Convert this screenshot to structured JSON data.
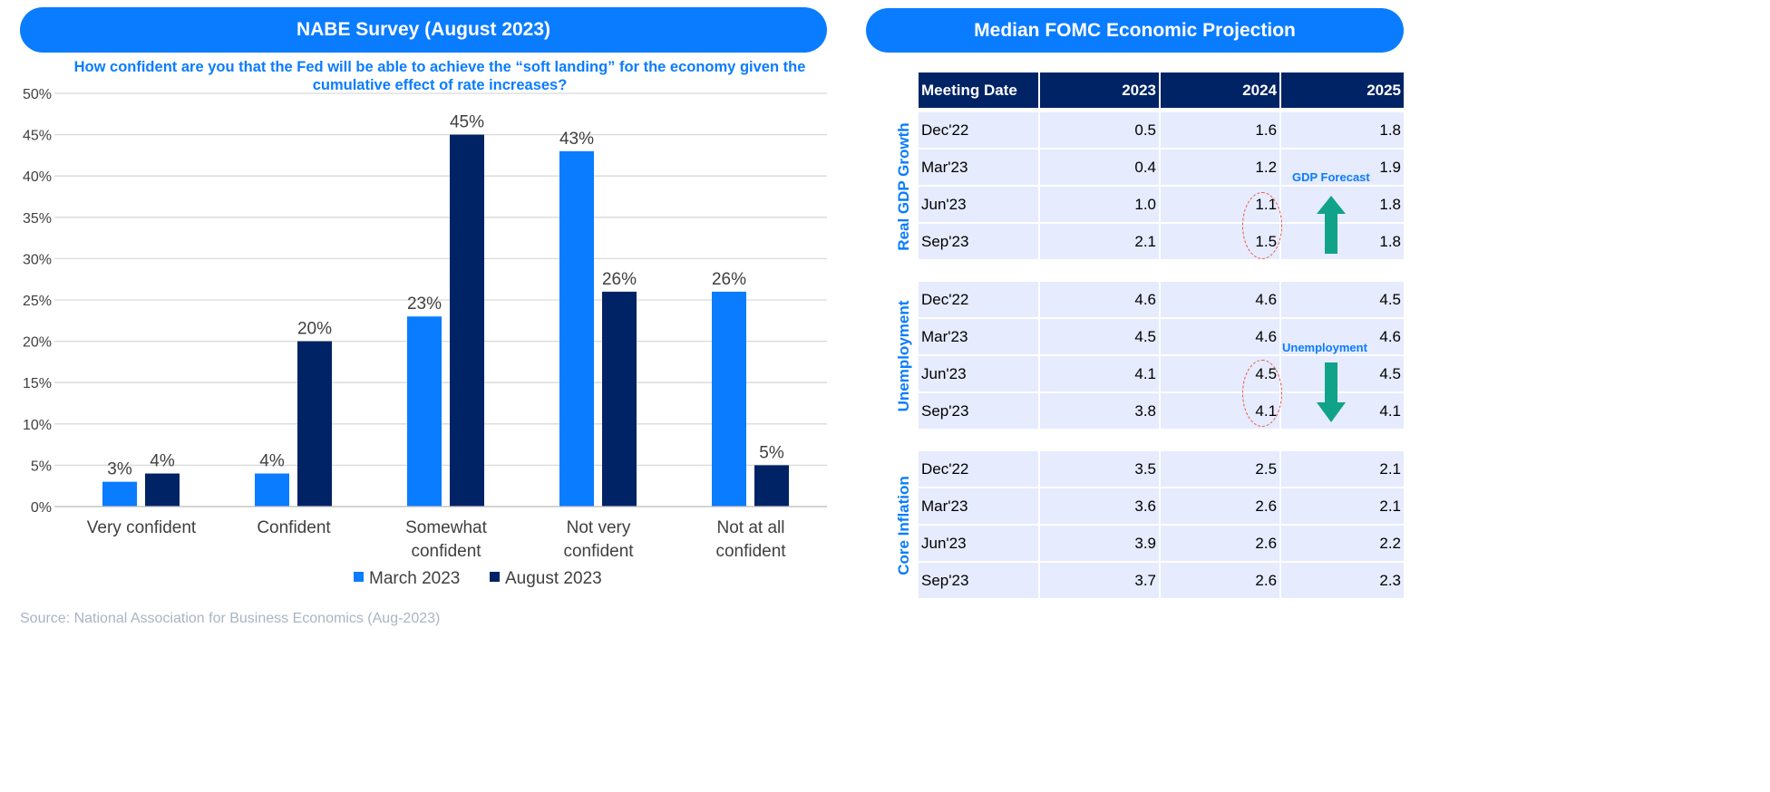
{
  "left": {
    "title": "NABE Survey (August 2023)",
    "question": "How confident are you that the Fed will be able to achieve the “soft landing” for the economy given the cumulative effect of rate increases?",
    "source": "Source: National Association for Business Economics (Aug-2023)"
  },
  "chart_data": {
    "type": "bar",
    "title": "NABE Survey (August 2023)",
    "categories": [
      "Very confident",
      "Confident",
      "Somewhat confident",
      "Not very confident",
      "Not at all confident"
    ],
    "series": [
      {
        "name": "March 2023",
        "color": "#0a7cff",
        "values": [
          3,
          4,
          23,
          43,
          26
        ]
      },
      {
        "name": "August 2023",
        "color": "#002366",
        "values": [
          4,
          20,
          45,
          26,
          5
        ]
      }
    ],
    "ylim": [
      0,
      50
    ],
    "yticks": [
      "0%",
      "5%",
      "10%",
      "15%",
      "20%",
      "25%",
      "30%",
      "35%",
      "40%",
      "45%",
      "50%"
    ],
    "legend": "bottom",
    "grid": true
  },
  "right": {
    "title": "Median FOMC Economic Projection",
    "headers": [
      "Meeting Date",
      "2023",
      "2024",
      "2025"
    ],
    "groups": [
      {
        "label": "Real GDP Growth",
        "rows": [
          [
            "Dec'22",
            "0.5",
            "1.6",
            "1.8"
          ],
          [
            "Mar'23",
            "0.4",
            "1.2",
            "1.9"
          ],
          [
            "Jun'23",
            "1.0",
            "1.1",
            "1.8"
          ],
          [
            "Sep'23",
            "2.1",
            "1.5",
            "1.8"
          ]
        ]
      },
      {
        "label": "Unemployment",
        "rows": [
          [
            "Dec'22",
            "4.6",
            "4.6",
            "4.5"
          ],
          [
            "Mar'23",
            "4.5",
            "4.6",
            "4.6"
          ],
          [
            "Jun'23",
            "4.1",
            "4.5",
            "4.5"
          ],
          [
            "Sep'23",
            "3.8",
            "4.1",
            "4.1"
          ]
        ]
      },
      {
        "label": "Core Inflation",
        "rows": [
          [
            "Dec'22",
            "3.5",
            "2.5",
            "2.1"
          ],
          [
            "Mar'23",
            "3.6",
            "2.6",
            "2.1"
          ],
          [
            "Jun'23",
            "3.9",
            "2.6",
            "2.2"
          ],
          [
            "Sep'23",
            "3.7",
            "2.6",
            "2.3"
          ]
        ]
      }
    ],
    "annotations": [
      "GDP Forecast",
      "Unemployment"
    ]
  }
}
